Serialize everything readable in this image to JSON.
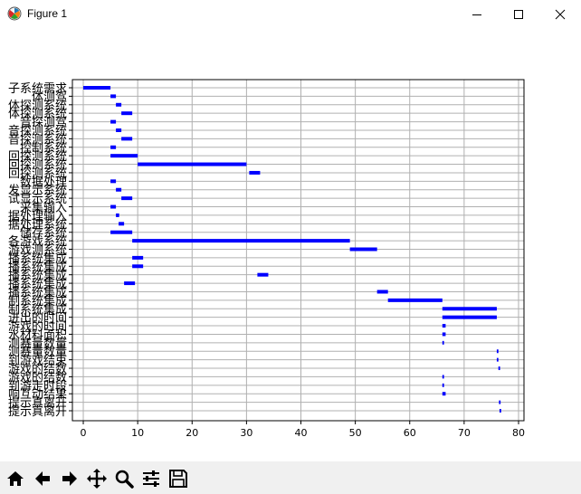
{
  "window": {
    "title": "Figure 1",
    "buttons": {
      "minimize": "minimize-icon",
      "maximize": "maximize-icon",
      "close": "close-icon"
    }
  },
  "toolbar": {
    "tools": [
      "home-icon",
      "back-arrow-icon",
      "forward-arrow-icon",
      "pan-icon",
      "zoom-icon",
      "subplots-config-icon",
      "save-icon"
    ]
  },
  "chart_data": {
    "type": "bar",
    "orientation": "horizontal (gantt)",
    "title": "",
    "xlabel": "",
    "ylabel": "",
    "xlim": [
      -2,
      81
    ],
    "xticks": [
      0,
      10,
      20,
      30,
      40,
      50,
      60,
      70,
      80
    ],
    "grid": true,
    "bar_color": "#0000ff",
    "categories": [
      "子系统需求",
      "体测驾",
      "体探测系统",
      "体探测系统",
      "音探测驾",
      "音探测系统",
      "音探测系统",
      "控制系统",
      "回探测系统",
      "回探测系统",
      "回探测系统",
      "数据处理",
      "发显示系统",
      "试显示系统",
      "采集输入",
      "据处理输入",
      "据处理系统",
      "储存系统",
      "各游戏系统",
      "游戏测系统",
      "播系统集成",
      "播系统集成",
      "播系统集成",
      "播系统集成",
      "播系统集成",
      "制系统集成",
      "制系统集成",
      "进出的时间",
      "游戏的时间",
      "水材料面积",
      "测赛量数量",
      "测赛量数量",
      "到游戏结束",
      "游戏的结数",
      "游戏的结数",
      "到游走时段",
      "响互动结果",
      "提示真离开",
      "提示真离开"
    ],
    "starts": [
      0,
      5,
      6,
      7,
      5,
      6,
      7,
      5,
      5,
      10,
      30.5,
      5,
      6,
      7,
      5,
      6,
      6.5,
      5,
      9,
      49,
      9,
      9,
      32,
      7.5,
      54,
      56,
      66,
      66,
      66,
      66,
      66,
      76,
      76,
      76.3,
      66,
      66,
      66,
      76.4,
      76.5
    ],
    "durations": [
      5,
      1,
      1,
      2,
      1,
      1,
      2,
      1,
      5,
      20,
      2,
      1,
      1,
      2,
      1,
      0.6,
      1,
      4,
      40,
      5,
      2,
      2,
      2,
      2,
      2,
      10,
      10,
      10,
      0.6,
      0.6,
      0.3,
      0.3,
      0.3,
      0.3,
      0.3,
      0.3,
      0.6,
      0.3,
      0.3
    ]
  }
}
